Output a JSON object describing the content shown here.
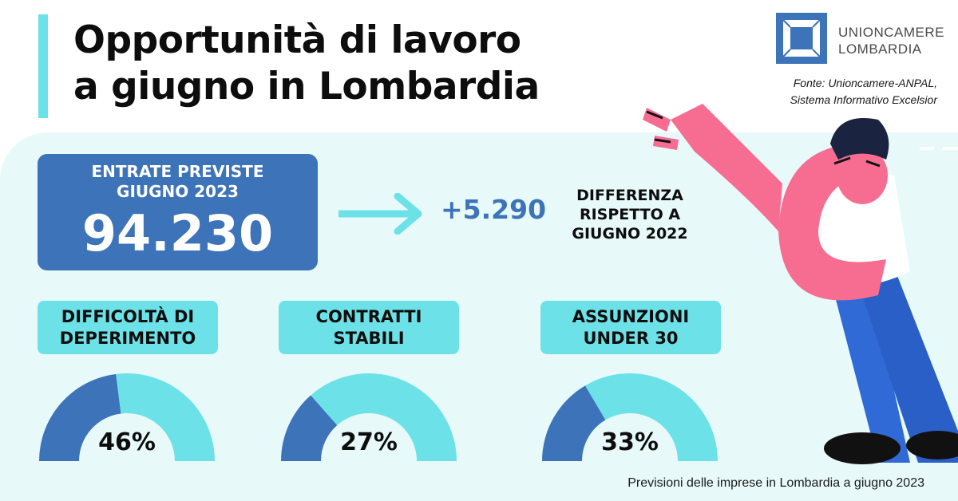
{
  "header": {
    "title_line1": "Opportunità di lavoro",
    "title_line2": "a giugno in Lombardia",
    "logo_line1": "UNIONCAMERE",
    "logo_line2": "LOMBARDIA",
    "source_line1": "Fonte: Unioncamere-ANPAL,",
    "source_line2": "Sistema Informativo Excelsior"
  },
  "kpi": {
    "label_line1": "ENTRATE PREVISTE",
    "label_line2": "GIUGNO 2023",
    "value": "94.230"
  },
  "delta": {
    "value": "+5.290",
    "label_line1": "DIFFERENZA",
    "label_line2": "RISPETTO A",
    "label_line3": "GIUGNO 2022"
  },
  "colors": {
    "accent_dark": "#3d73b8",
    "accent_light": "#6ce2e8",
    "panel_bg": "#e7f9f8"
  },
  "chart_data": [
    {
      "type": "pie",
      "categories_line1": "DIFFICOLTÀ DI",
      "categories_line2": "DEPERIMENTO",
      "value": 46,
      "label": "46%"
    },
    {
      "type": "pie",
      "categories_line1": "CONTRATTI",
      "categories_line2": "STABILI",
      "value": 27,
      "label": "27%"
    },
    {
      "type": "pie",
      "categories_line1": "ASSUNZIONI",
      "categories_line2": "UNDER 30",
      "value": 33,
      "label": "33%"
    }
  ],
  "footer": {
    "text": "Previsioni delle imprese in Lombardia a giugno 2023"
  }
}
